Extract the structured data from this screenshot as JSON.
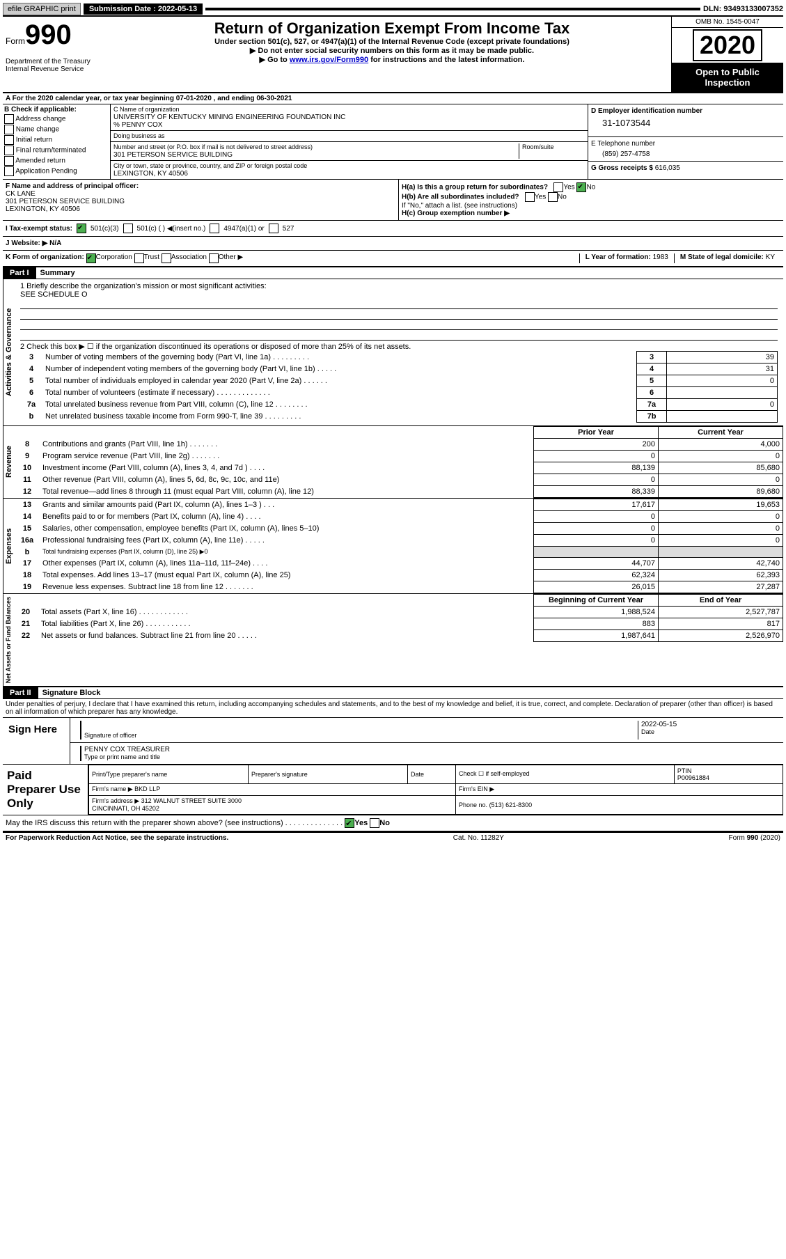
{
  "topbar": {
    "efile": "efile GRAPHIC print",
    "submission_label": "Submission Date : 2022-05-13",
    "dln": "DLN: 93493133007352"
  },
  "header": {
    "form_label": "Form",
    "form_num": "990",
    "dept": "Department of the Treasury\nInternal Revenue Service",
    "title": "Return of Organization Exempt From Income Tax",
    "sub": "Under section 501(c), 527, or 4947(a)(1) of the Internal Revenue Code (except private foundations)",
    "inst1": "▶ Do not enter social security numbers on this form as it may be made public.",
    "inst2_pre": "▶ Go to ",
    "inst2_link": "www.irs.gov/Form990",
    "inst2_post": " for instructions and the latest information.",
    "omb": "OMB No. 1545-0047",
    "year": "2020",
    "open": "Open to Public Inspection"
  },
  "line_a": "A For the 2020 calendar year, or tax year beginning 07-01-2020   , and ending 06-30-2021",
  "b": {
    "label": "B Check if applicable:",
    "opts": [
      "Address change",
      "Name change",
      "Initial return",
      "Final return/terminated",
      "Amended return",
      "Application Pending"
    ]
  },
  "c": {
    "name_label": "C Name of organization",
    "name": "UNIVERSITY OF KENTUCKY MINING ENGINEERING FOUNDATION INC",
    "care": "% PENNY COX",
    "dba_label": "Doing business as",
    "street_label": "Number and street (or P.O. box if mail is not delivered to street address)",
    "street": "301 PETERSON SERVICE BUILDING",
    "room_label": "Room/suite",
    "city_label": "City or town, state or province, country, and ZIP or foreign postal code",
    "city": "LEXINGTON, KY  40506"
  },
  "d": {
    "label": "D Employer identification number",
    "ein": "31-1073544"
  },
  "e": {
    "label": "E Telephone number",
    "phone": "(859) 257-4758"
  },
  "g": {
    "label": "G Gross receipts $",
    "val": "616,035"
  },
  "f": {
    "label": "F Name and address of principal officer:",
    "name": "CK LANE",
    "street": "301 PETERSON SERVICE BUILDING",
    "city": "LEXINGTON, KY  40506"
  },
  "h": {
    "a": "H(a)  Is this a group return for subordinates?",
    "a_ans": "No",
    "b": "H(b)  Are all subordinates included?",
    "b_note": "If \"No,\" attach a list. (see instructions)",
    "c": "H(c)  Group exemption number ▶"
  },
  "i": {
    "label": "I  Tax-exempt status:",
    "c1": "501(c)(3)",
    "c2": "501(c) (  ) ◀(insert no.)",
    "c3": "4947(a)(1) or",
    "c4": "527"
  },
  "j": {
    "label": "J  Website: ▶",
    "val": "N/A"
  },
  "k": {
    "label": "K Form of organization:",
    "corp": "Corporation",
    "trust": "Trust",
    "assoc": "Association",
    "other": "Other ▶"
  },
  "l": {
    "label": "L Year of formation:",
    "val": "1983"
  },
  "m": {
    "label": "M State of legal domicile:",
    "val": "KY"
  },
  "part1": {
    "hdr": "Part I",
    "title": "Summary",
    "q1": "1  Briefly describe the organization's mission or most significant activities:",
    "q1a": "SEE SCHEDULE O",
    "q2": "2  Check this box ▶ ☐  if the organization discontinued its operations or disposed of more than 25% of its net assets.",
    "rows_top": [
      {
        "n": "3",
        "d": "Number of voting members of the governing body (Part VI, line 1a)   .   .   .   .   .   .   .   .   .",
        "b": "3",
        "v": "39"
      },
      {
        "n": "4",
        "d": "Number of independent voting members of the governing body (Part VI, line 1b)   .   .   .   .   .",
        "b": "4",
        "v": "31"
      },
      {
        "n": "5",
        "d": "Total number of individuals employed in calendar year 2020 (Part V, line 2a)   .   .   .   .   .   .",
        "b": "5",
        "v": "0"
      },
      {
        "n": "6",
        "d": "Total number of volunteers (estimate if necessary)   .   .   .   .   .   .   .   .   .   .   .   .   .",
        "b": "6",
        "v": ""
      },
      {
        "n": "7a",
        "d": "Total unrelated business revenue from Part VIII, column (C), line 12   .   .   .   .   .   .   .   .",
        "b": "7a",
        "v": "0"
      },
      {
        "n": "b",
        "d": "Net unrelated business taxable income from Form 990-T, line 39   .   .   .   .   .   .   .   .   .",
        "b": "7b",
        "v": ""
      }
    ],
    "hdr_prior": "Prior Year",
    "hdr_curr": "Current Year",
    "rev": [
      {
        "n": "8",
        "d": "Contributions and grants (Part VIII, line 1h)   .   .   .   .   .   .   .",
        "p": "200",
        "c": "4,000"
      },
      {
        "n": "9",
        "d": "Program service revenue (Part VIII, line 2g)   .   .   .   .   .   .   .",
        "p": "0",
        "c": "0"
      },
      {
        "n": "10",
        "d": "Investment income (Part VIII, column (A), lines 3, 4, and 7d )   .   .   .   .",
        "p": "88,139",
        "c": "85,680"
      },
      {
        "n": "11",
        "d": "Other revenue (Part VIII, column (A), lines 5, 6d, 8c, 9c, 10c, and 11e)",
        "p": "0",
        "c": "0"
      },
      {
        "n": "12",
        "d": "Total revenue—add lines 8 through 11 (must equal Part VIII, column (A), line 12)",
        "p": "88,339",
        "c": "89,680"
      }
    ],
    "exp": [
      {
        "n": "13",
        "d": "Grants and similar amounts paid (Part IX, column (A), lines 1–3 )   .   .   .",
        "p": "17,617",
        "c": "19,653"
      },
      {
        "n": "14",
        "d": "Benefits paid to or for members (Part IX, column (A), line 4)   .   .   .   .",
        "p": "0",
        "c": "0"
      },
      {
        "n": "15",
        "d": "Salaries, other compensation, employee benefits (Part IX, column (A), lines 5–10)",
        "p": "0",
        "c": "0"
      },
      {
        "n": "16a",
        "d": "Professional fundraising fees (Part IX, column (A), line 11e)   .   .   .   .   .",
        "p": "0",
        "c": "0"
      },
      {
        "n": "b",
        "d": "Total fundraising expenses (Part IX, column (D), line 25) ▶0",
        "p": "",
        "c": "",
        "span": true
      },
      {
        "n": "17",
        "d": "Other expenses (Part IX, column (A), lines 11a–11d, 11f–24e)   .   .   .   .",
        "p": "44,707",
        "c": "42,740"
      },
      {
        "n": "18",
        "d": "Total expenses. Add lines 13–17 (must equal Part IX, column (A), line 25)",
        "p": "62,324",
        "c": "62,393"
      },
      {
        "n": "19",
        "d": "Revenue less expenses. Subtract line 18 from line 12   .   .   .   .   .   .   .",
        "p": "26,015",
        "c": "27,287"
      }
    ],
    "hdr_beg": "Beginning of Current Year",
    "hdr_end": "End of Year",
    "net": [
      {
        "n": "20",
        "d": "Total assets (Part X, line 16)   .   .   .   .   .   .   .   .   .   .   .   .",
        "p": "1,988,524",
        "c": "2,527,787"
      },
      {
        "n": "21",
        "d": "Total liabilities (Part X, line 26)   .   .   .   .   .   .   .   .   .   .   .",
        "p": "883",
        "c": "817"
      },
      {
        "n": "22",
        "d": "Net assets or fund balances. Subtract line 21 from line 20   .   .   .   .   .",
        "p": "1,987,641",
        "c": "2,526,970"
      }
    ],
    "side_ag": "Activities & Governance",
    "side_rev": "Revenue",
    "side_exp": "Expenses",
    "side_net": "Net Assets or Fund Balances"
  },
  "part2": {
    "hdr": "Part II",
    "title": "Signature Block",
    "decl": "Under penalties of perjury, I declare that I have examined this return, including accompanying schedules and statements, and to the best of my knowledge and belief, it is true, correct, and complete. Declaration of preparer (other than officer) is based on all information of which preparer has any knowledge.",
    "sign_here": "Sign Here",
    "sig_officer": "Signature of officer",
    "date": "2022-05-15",
    "date_lbl": "Date",
    "name_title": "PENNY COX  TREASURER",
    "type_lbl": "Type or print name and title",
    "paid": "Paid Preparer Use Only",
    "pt_name_lbl": "Print/Type preparer's name",
    "pt_sig_lbl": "Preparer's signature",
    "pt_date_lbl": "Date",
    "pt_check": "Check ☐ if self-employed",
    "ptin_lbl": "PTIN",
    "ptin": "P00961884",
    "firm_name_lbl": "Firm's name   ▶",
    "firm_name": "BKD LLP",
    "firm_ein_lbl": "Firm's EIN ▶",
    "firm_addr_lbl": "Firm's address ▶",
    "firm_addr": "312 WALNUT STREET SUITE 3000\nCINCINNATI, OH  45202",
    "phone_lbl": "Phone no.",
    "phone": "(513) 621-8300",
    "discuss": "May the IRS discuss this return with the preparer shown above? (see instructions)   .   .   .   .   .   .   .   .   .   .   .   .   .   .",
    "discuss_ans": "Yes"
  },
  "footer": {
    "pra": "For Paperwork Reduction Act Notice, see the separate instructions.",
    "cat": "Cat. No. 11282Y",
    "form": "Form 990 (2020)"
  }
}
